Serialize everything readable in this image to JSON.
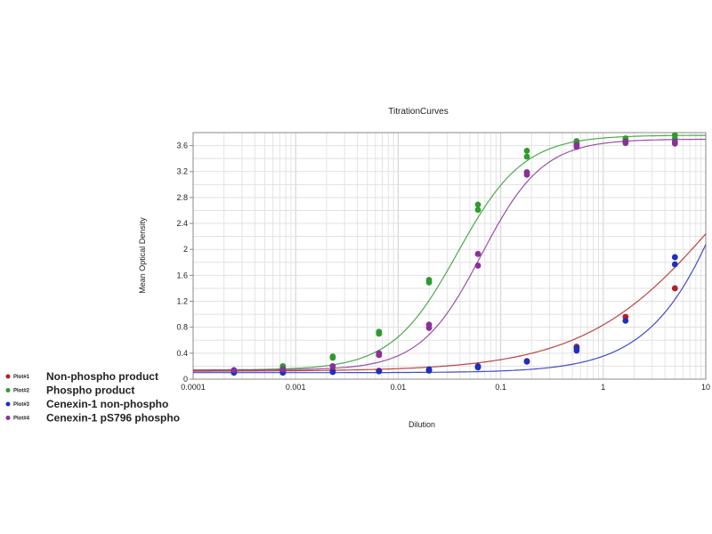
{
  "chart_data": {
    "type": "scatter",
    "title": "TitrationCurves",
    "xlabel": "Dilution",
    "ylabel": "Mean Optical Density",
    "xscale": "log",
    "xlim": [
      0.0001,
      10
    ],
    "ylim": [
      0,
      3.8
    ],
    "grid": true,
    "legend_position": "bottom-left",
    "x_ticks": [
      {
        "value": 0.0001,
        "label": "0.0001"
      },
      {
        "value": 0.001,
        "label": "0.001"
      },
      {
        "value": 0.01,
        "label": "0.01"
      },
      {
        "value": 0.1,
        "label": "0.1"
      },
      {
        "value": 1,
        "label": "1"
      },
      {
        "value": 10,
        "label": "10"
      }
    ],
    "y_ticks": [
      {
        "value": 0,
        "label": "0"
      },
      {
        "value": 0.4,
        "label": "0.4"
      },
      {
        "value": 0.8,
        "label": "0.8"
      },
      {
        "value": 1.2,
        "label": "1.2"
      },
      {
        "value": 1.6,
        "label": "1.6"
      },
      {
        "value": 2,
        "label": "2"
      },
      {
        "value": 2.4,
        "label": "2.4"
      },
      {
        "value": 2.8,
        "label": "2.8"
      },
      {
        "value": 3.2,
        "label": "3.2"
      },
      {
        "value": 3.6,
        "label": "3.6"
      }
    ],
    "series": [
      {
        "tag": "Plot#1",
        "name": "Non-phospho product",
        "color": "#b22222",
        "points": [
          [
            0.00025,
            0.12
          ],
          [
            0.00075,
            0.12
          ],
          [
            0.0023,
            0.13
          ],
          [
            0.0065,
            0.13
          ],
          [
            0.02,
            0.14
          ],
          [
            0.06,
            0.19
          ],
          [
            0.18,
            0.28
          ],
          [
            0.55,
            0.5
          ],
          [
            1.65,
            0.96
          ],
          [
            5,
            1.4
          ]
        ],
        "curve": {
          "bottom": 0.12,
          "top": 5.0,
          "ec50": 15,
          "hill": 0.65
        }
      },
      {
        "tag": "Plot#2",
        "name": "Phospho product",
        "color": "#2e9b2e",
        "points": [
          [
            0.00025,
            0.12
          ],
          [
            0.00075,
            0.2
          ],
          [
            0.00075,
            0.18
          ],
          [
            0.0023,
            0.35
          ],
          [
            0.0023,
            0.33
          ],
          [
            0.0065,
            0.73
          ],
          [
            0.0065,
            0.7
          ],
          [
            0.02,
            1.53
          ],
          [
            0.02,
            1.49
          ],
          [
            0.06,
            2.69
          ],
          [
            0.06,
            2.61
          ],
          [
            0.18,
            3.52
          ],
          [
            0.18,
            3.43
          ],
          [
            0.55,
            3.67
          ],
          [
            0.55,
            3.64
          ],
          [
            1.65,
            3.71
          ],
          [
            1.65,
            3.69
          ],
          [
            5,
            3.76
          ],
          [
            5,
            3.71
          ]
        ],
        "curve": {
          "bottom": 0.14,
          "top": 3.76,
          "ec50": 0.038,
          "hill": 1.35
        }
      },
      {
        "tag": "Plot#3",
        "name": "Cenexin-1 non-phospho",
        "color": "#1f2fbf",
        "points": [
          [
            0.00025,
            0.1
          ],
          [
            0.00075,
            0.1
          ],
          [
            0.0023,
            0.11
          ],
          [
            0.0065,
            0.12
          ],
          [
            0.02,
            0.13
          ],
          [
            0.02,
            0.15
          ],
          [
            0.06,
            0.18
          ],
          [
            0.06,
            0.2
          ],
          [
            0.18,
            0.27
          ],
          [
            0.55,
            0.44
          ],
          [
            0.55,
            0.48
          ],
          [
            1.65,
            0.9
          ],
          [
            5,
            1.88
          ],
          [
            5,
            1.77
          ]
        ],
        "curve": {
          "bottom": 0.1,
          "top": 8.0,
          "ec50": 30,
          "hill": 1.0
        }
      },
      {
        "tag": "Plot#4",
        "name": "Cenexin-1 pS796 phospho",
        "color": "#8b2f9a",
        "points": [
          [
            0.00025,
            0.14
          ],
          [
            0.00075,
            0.15
          ],
          [
            0.0023,
            0.2
          ],
          [
            0.0065,
            0.4
          ],
          [
            0.0065,
            0.37
          ],
          [
            0.02,
            0.84
          ],
          [
            0.02,
            0.79
          ],
          [
            0.06,
            1.93
          ],
          [
            0.06,
            1.75
          ],
          [
            0.18,
            3.19
          ],
          [
            0.18,
            3.15
          ],
          [
            0.55,
            3.61
          ],
          [
            0.55,
            3.58
          ],
          [
            1.65,
            3.66
          ],
          [
            1.65,
            3.64
          ],
          [
            5,
            3.66
          ],
          [
            5,
            3.63
          ]
        ],
        "curve": {
          "bottom": 0.14,
          "top": 3.7,
          "ec50": 0.065,
          "hill": 1.45
        }
      }
    ]
  }
}
